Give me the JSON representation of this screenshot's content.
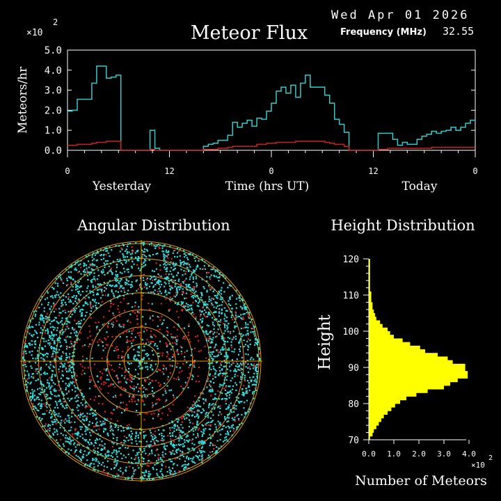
{
  "header": {
    "date": "Wed Apr 01 2026",
    "title": "Meteor Flux",
    "frequency_label": "Frequency (MHz)",
    "frequency_value": "32.55",
    "scale_multiplier": "×10",
    "scale_exponent": "2"
  },
  "colors": {
    "background": "#000000",
    "flux_line": "#33cccc",
    "flux_baseline": "#cc2222",
    "axes": "#ffffff",
    "polar_rings": "#e8a000",
    "polar_points_a": "#33dddd",
    "polar_points_b": "#dd2222",
    "histogram": "#ffff00"
  },
  "flux": {
    "ylabel": "Meteors/hr",
    "xlabel": "Time (hrs UT)",
    "label_yesterday": "Yesterday",
    "label_today": "Today",
    "y_ticks": [
      "0.0",
      "1.0",
      "2.0",
      "3.0",
      "4.0",
      "5.0"
    ],
    "x_ticks": [
      "0",
      "12",
      "0",
      "12",
      "0"
    ]
  },
  "angular": {
    "title": "Angular Distribution"
  },
  "height": {
    "title": "Height Distribution",
    "ylabel": "Height",
    "xlabel": "Number of Meteors",
    "y_ticks": [
      "120",
      "110",
      "100",
      "90",
      "80",
      "70"
    ],
    "x_ticks": [
      "0.0",
      "1.0",
      "2.0",
      "3.0",
      "4.0"
    ],
    "scale_multiplier": "×10",
    "scale_exponent": "2"
  },
  "chart_data": [
    {
      "type": "line",
      "title": "Meteor Flux",
      "xlabel": "Time (hrs UT)",
      "ylabel": "Meteors/hr",
      "y_scale_note": "×10^2",
      "xlim": [
        0,
        48
      ],
      "ylim": [
        0,
        5
      ],
      "step": true,
      "series": [
        {
          "values": [
            1.95,
            2.0,
            2.55,
            2.55,
            2.55,
            3.35,
            4.2,
            4.2,
            3.6,
            3.65,
            3.75,
            0.0,
            0.0,
            0.0,
            0.0,
            0.0,
            0.0,
            1.0,
            0.1,
            0.0,
            0.0,
            0.0,
            0.0,
            0.0,
            0.0,
            0.0,
            0.0,
            0.0,
            0.2,
            0.3,
            0.35,
            0.5,
            0.5,
            0.75,
            1.4,
            1.15,
            1.35,
            1.5,
            1.2,
            1.6,
            1.55,
            1.95,
            2.35,
            2.95,
            3.15,
            2.85,
            3.25,
            2.65,
            3.35,
            3.75,
            3.15,
            3.15,
            3.15,
            2.75,
            2.35,
            1.55,
            1.3,
            0.9,
            0.0,
            0.0,
            0.0,
            0.0,
            0.0,
            0.0,
            0.85,
            0.85,
            0.85,
            0.55,
            0.25,
            0.4,
            0.3,
            0.3,
            0.55,
            0.7,
            0.8,
            0.95,
            0.85,
            0.95,
            1.0,
            1.15,
            1.0,
            1.15,
            1.35,
            1.5
          ]
        },
        {
          "values": [
            0.25,
            0.25,
            0.3,
            0.3,
            0.3,
            0.35,
            0.4,
            0.4,
            0.45,
            0.45,
            0.45,
            0.0,
            0.0,
            0.0,
            0.0,
            0.0,
            0.0,
            0.05,
            0.0,
            0.0,
            0.0,
            0.0,
            0.0,
            0.0,
            0.0,
            0.0,
            0.0,
            0.0,
            0.05,
            0.05,
            0.05,
            0.1,
            0.1,
            0.15,
            0.2,
            0.2,
            0.2,
            0.2,
            0.2,
            0.3,
            0.3,
            0.35,
            0.35,
            0.4,
            0.4,
            0.4,
            0.4,
            0.45,
            0.45,
            0.45,
            0.45,
            0.45,
            0.45,
            0.4,
            0.35,
            0.3,
            0.3,
            0.2,
            0.0,
            0.0,
            0.0,
            0.0,
            0.0,
            0.0,
            0.05,
            0.05,
            0.1,
            0.1,
            0.1,
            0.1,
            0.1,
            0.1,
            0.1,
            0.1,
            0.1,
            0.15,
            0.15,
            0.15,
            0.15,
            0.15,
            0.15,
            0.15,
            0.15,
            0.15
          ]
        }
      ]
    },
    {
      "type": "scatter",
      "title": "Angular Distribution",
      "polar": true,
      "rings": 7,
      "series": [
        {
          "color": "#33dddd",
          "count": 3200
        },
        {
          "color": "#dd2222",
          "count": 700
        }
      ]
    },
    {
      "type": "bar",
      "orientation": "horizontal",
      "title": "Height Distribution",
      "xlabel": "Number of Meteors",
      "ylabel": "Height",
      "x_scale_note": "×10^2",
      "xlim": [
        0,
        4
      ],
      "ylim": [
        70,
        120
      ],
      "categories": [
        70,
        71,
        72,
        73,
        74,
        75,
        76,
        77,
        78,
        79,
        80,
        81,
        82,
        83,
        84,
        85,
        86,
        87,
        88,
        89,
        90,
        91,
        92,
        93,
        94,
        95,
        96,
        97,
        98,
        99,
        100,
        101,
        102,
        103,
        104,
        105,
        106,
        107,
        108,
        109,
        110,
        111,
        112,
        113,
        114,
        115,
        116,
        117,
        118,
        119
      ],
      "values": [
        0.05,
        0.15,
        0.2,
        0.3,
        0.4,
        0.5,
        0.6,
        0.75,
        0.9,
        1.05,
        1.25,
        1.5,
        1.9,
        2.35,
        3.0,
        3.25,
        3.55,
        3.95,
        3.95,
        3.85,
        3.85,
        3.35,
        3.15,
        2.75,
        2.25,
        2.05,
        1.65,
        1.35,
        1.0,
        0.85,
        0.75,
        0.55,
        0.45,
        0.3,
        0.25,
        0.2,
        0.15,
        0.15,
        0.1,
        0.1,
        0.1,
        0.05,
        0.05,
        0.05,
        0.05,
        0.05,
        0.05,
        0.05,
        0.05,
        0.05
      ]
    }
  ]
}
